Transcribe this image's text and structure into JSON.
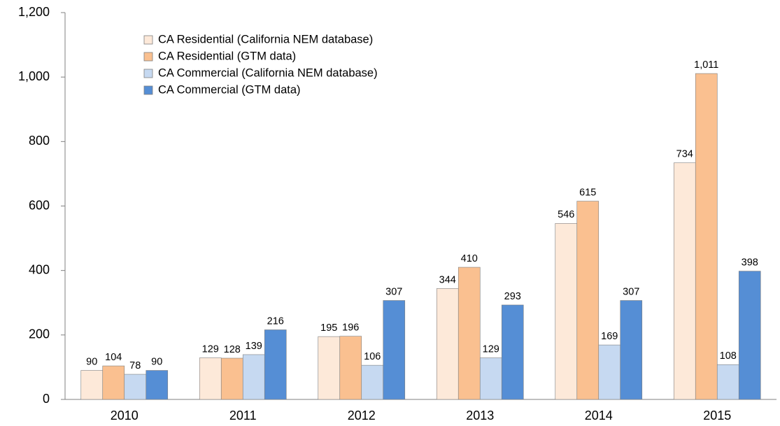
{
  "chart_data": {
    "type": "bar",
    "categories": [
      "2010",
      "2011",
      "2012",
      "2013",
      "2014",
      "2015"
    ],
    "series": [
      {
        "name": "CA Residential (California NEM database)",
        "color": "#fde9d9",
        "values": [
          90,
          129,
          195,
          344,
          546,
          734
        ]
      },
      {
        "name": "CA Residential (GTM data)",
        "color": "#fac090",
        "values": [
          104,
          128,
          196,
          410,
          615,
          1011
        ],
        "value_labels": [
          "104",
          "128",
          "196",
          "410",
          "615",
          "1,011"
        ]
      },
      {
        "name": "CA Commercial (California NEM database)",
        "color": "#c6d9f1",
        "values": [
          78,
          139,
          106,
          129,
          169,
          108
        ]
      },
      {
        "name": "CA Commercial (GTM data)",
        "color": "#558ed5",
        "values": [
          90,
          216,
          307,
          293,
          307,
          398
        ]
      }
    ],
    "ylim": [
      0,
      1200
    ],
    "yticks": [
      0,
      200,
      400,
      600,
      800,
      {
        "value": 1000,
        "label": "1,000"
      },
      {
        "value": 1200,
        "label": "1,200"
      }
    ],
    "grid": false
  }
}
